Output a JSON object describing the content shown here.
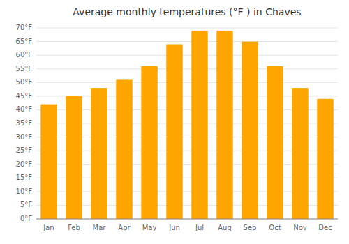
{
  "chart_data": {
    "type": "bar",
    "title": "Average monthly temperatures (°F ) in Chaves",
    "categories": [
      "Jan",
      "Feb",
      "Mar",
      "Apr",
      "May",
      "Jun",
      "Jul",
      "Aug",
      "Sep",
      "Oct",
      "Nov",
      "Dec"
    ],
    "values": [
      42,
      45,
      48,
      51,
      56,
      64,
      69,
      69,
      65,
      56,
      48,
      44
    ],
    "color": "#FFA500",
    "ylim": [
      0,
      70
    ],
    "yticks": [
      {
        "value": 0,
        "label": "0°F"
      },
      {
        "value": 5,
        "label": "5°F"
      },
      {
        "value": 10,
        "label": "10°F"
      },
      {
        "value": 15,
        "label": "15°F"
      },
      {
        "value": 20,
        "label": "20°F"
      },
      {
        "value": 25,
        "label": "25°F"
      },
      {
        "value": 30,
        "label": "30°F"
      },
      {
        "value": 35,
        "label": "35°F"
      },
      {
        "value": 40,
        "label": "40°F"
      },
      {
        "value": 45,
        "label": "45°F"
      },
      {
        "value": 50,
        "label": "50°F"
      },
      {
        "value": 55,
        "label": "55°F"
      },
      {
        "value": 60,
        "label": "60°F"
      },
      {
        "value": 65,
        "label": "65°F"
      },
      {
        "value": 70,
        "label": "70°F"
      }
    ],
    "grid": true
  }
}
